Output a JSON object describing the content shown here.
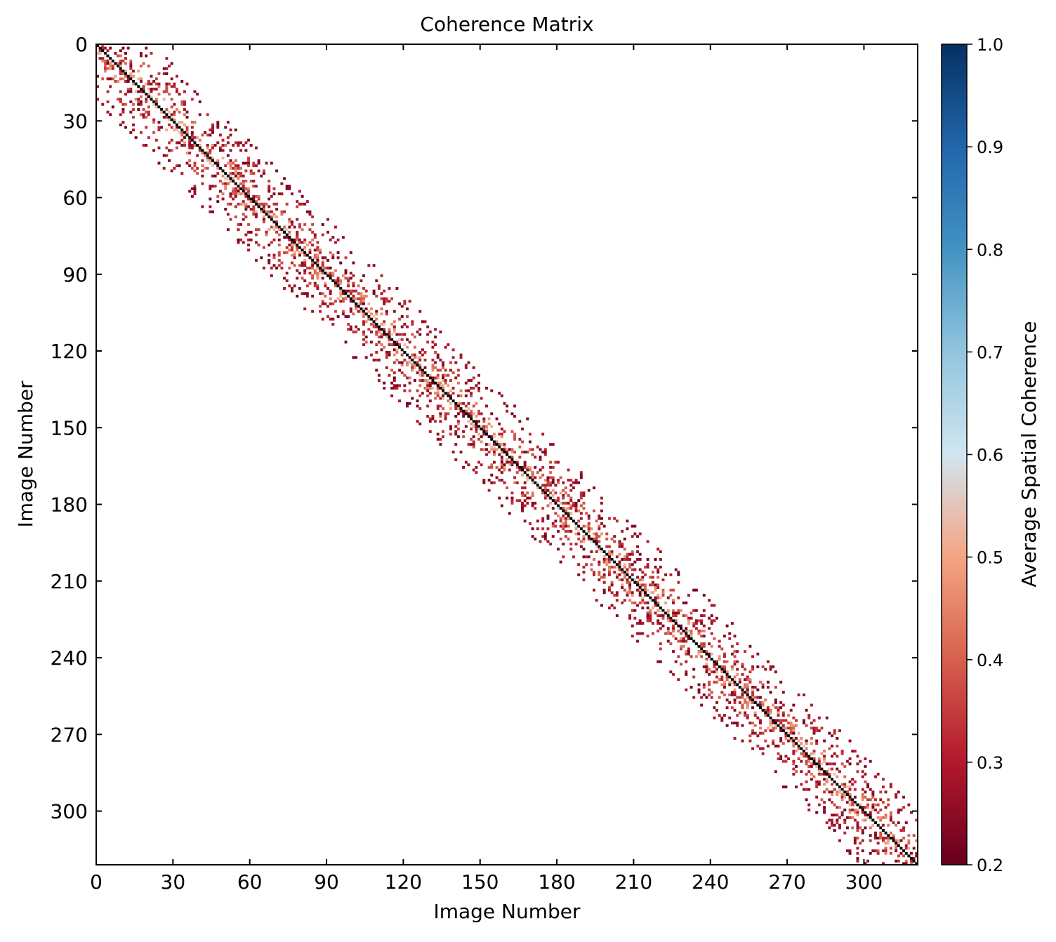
{
  "chart_data": {
    "type": "heatmap",
    "title": "Coherence Matrix",
    "xlabel": "Image Number",
    "ylabel": "Image Number",
    "xlim": [
      0,
      321
    ],
    "ylim": [
      321,
      0
    ],
    "x_ticks": [
      "0",
      "30",
      "60",
      "90",
      "120",
      "150",
      "180",
      "210",
      "240",
      "270",
      "300"
    ],
    "y_ticks": [
      "0",
      "30",
      "60",
      "90",
      "120",
      "150",
      "180",
      "210",
      "240",
      "270",
      "300"
    ],
    "tick_values": [
      0,
      30,
      60,
      90,
      120,
      150,
      180,
      210,
      240,
      270,
      300
    ],
    "n_images": 321,
    "diagonal_value": 1.0,
    "band_halfwidth_images": 22,
    "threshold_note_value": 0.7,
    "colorbar": {
      "label": "Average Spatial Coherence",
      "min": 0.2,
      "max": 1.0,
      "ticks": [
        "0.2",
        "0.3",
        "0.4",
        "0.5",
        "0.6",
        "0.7",
        "0.8",
        "0.9",
        "1.0"
      ],
      "tick_values": [
        0.2,
        0.3,
        0.4,
        0.5,
        0.6,
        0.7,
        0.8,
        0.9,
        1.0
      ],
      "colormap": "RdBu",
      "colors": [
        "#67001f",
        "#b2182b",
        "#d6604d",
        "#f4a582",
        "#d1e5f0",
        "#92c5de",
        "#4393c3",
        "#2166ac",
        "#053061"
      ]
    },
    "diagonal_color": "#000000",
    "grid": false,
    "legend": "none"
  }
}
